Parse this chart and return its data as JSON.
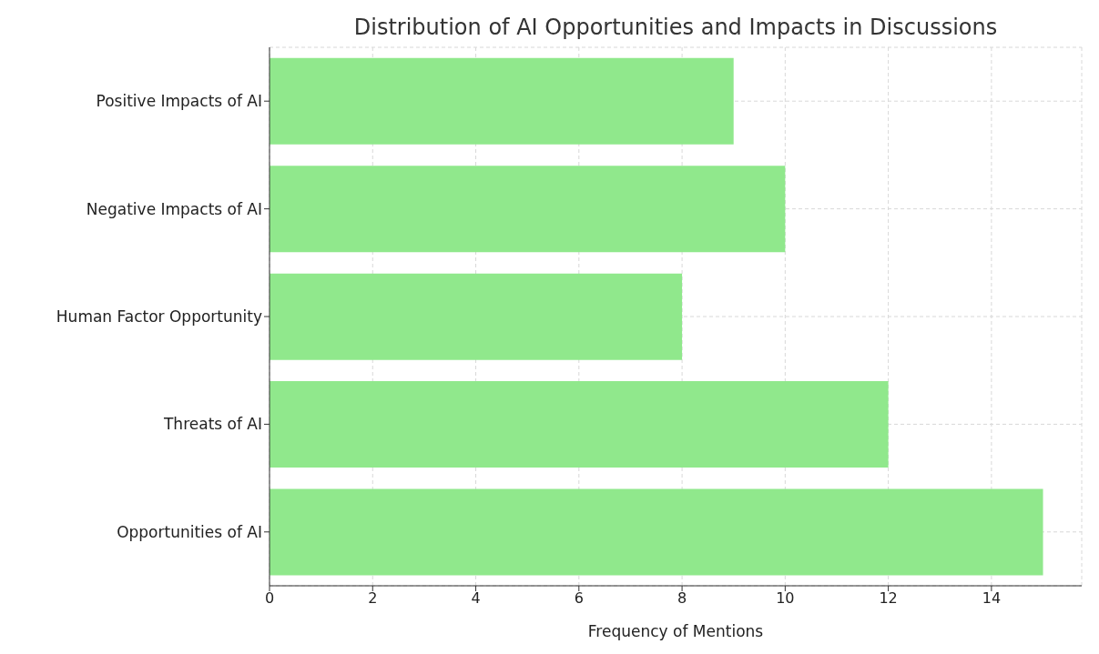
{
  "chart_data": {
    "type": "bar",
    "orientation": "horizontal",
    "title": "Distribution of AI Opportunities and Impacts in Discussions",
    "xlabel": "Frequency of Mentions",
    "categories": [
      "Positive Impacts of AI",
      "Negative Impacts of AI",
      "Human Factor Opportunity",
      "Threats of AI",
      "Opportunities of AI"
    ],
    "values": [
      9,
      10,
      8,
      12,
      15
    ],
    "color": "#90e88c",
    "xlim": [
      0,
      15.75
    ],
    "xticks": [
      0,
      2,
      4,
      6,
      8,
      10,
      12,
      14
    ],
    "grid": true
  }
}
